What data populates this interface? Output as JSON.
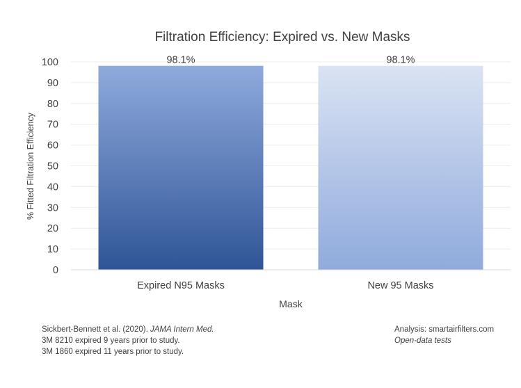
{
  "chart_data": {
    "type": "bar",
    "title": "Filtration Efficiency: Expired vs. New Masks",
    "xlabel": "Mask",
    "ylabel": "% Fitted Filtration Efficiency",
    "categories": [
      "Expired N95 Masks",
      "New 95 Masks"
    ],
    "values": [
      98.1,
      98.1
    ],
    "data_labels": [
      "98.1%",
      "98.1%"
    ],
    "ylim": [
      0,
      100
    ],
    "yticks": [
      "0",
      "10",
      "20",
      "30",
      "40",
      "50",
      "60",
      "70",
      "80",
      "90",
      "100"
    ],
    "grid": true,
    "legend": "none",
    "bar_colors": [
      {
        "top": "#8faadc",
        "bottom": "#2f5597"
      },
      {
        "top": "#dae3f3",
        "bottom": "#8faadc"
      }
    ]
  },
  "footnotes": {
    "citation_authors": "Sickbert-Bennett et al. (2020). ",
    "citation_journal": "JAMA Intern Med.",
    "note_1": "3M 8210 expired 9 years prior to study.",
    "note_2": "3M 1860 expired 11 years prior to study.",
    "analysis": "Analysis: smartairfilters.com",
    "source": "Open-data tests"
  }
}
